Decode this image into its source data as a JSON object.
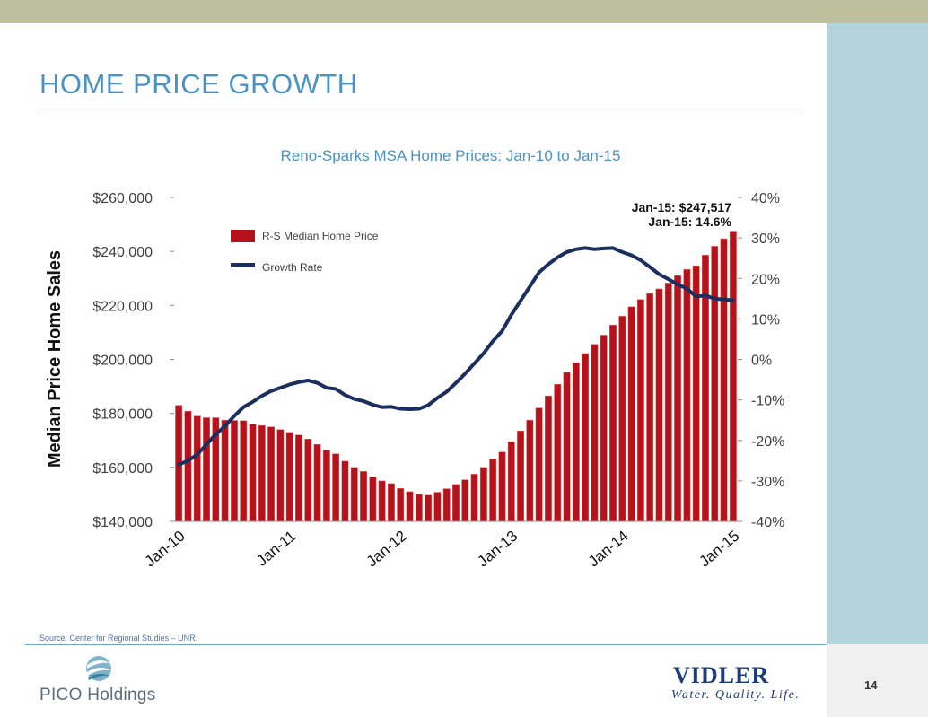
{
  "page": {
    "title": "HOME PRICE GROWTH",
    "source": "Source: Center for Regional Studies – UNR.",
    "page_number": "14"
  },
  "logos": {
    "left": {
      "text": "PICO Holdings"
    },
    "right": {
      "name": "VIDLER",
      "tagline": "Water. Quality. Life."
    }
  },
  "colors": {
    "bar": "#b5121b",
    "bar_highlight": "#d94a44",
    "line": "#1b2f5e",
    "title": "#4a92c2",
    "axis_text": "#404040"
  },
  "chart_data": {
    "type": "bar",
    "title": "Reno-Sparks MSA Home Prices: Jan-10 to Jan-15",
    "ylabel": "Median Price Home Sales",
    "xlabel": "",
    "ylim": [
      140000,
      260000
    ],
    "y2lim": [
      -40,
      40
    ],
    "yticks": [
      "$140,000",
      "$160,000",
      "$180,000",
      "$200,000",
      "$220,000",
      "$240,000",
      "$260,000"
    ],
    "y2ticks": [
      "-40%",
      "-30%",
      "-20%",
      "-10%",
      "0%",
      "10%",
      "20%",
      "30%",
      "40%"
    ],
    "xtick_labels": [
      "Jan-10",
      "Jan-11",
      "Jan-12",
      "Jan-13",
      "Jan-14",
      "Jan-15"
    ],
    "xtick_index": [
      0,
      12,
      24,
      36,
      48,
      60
    ],
    "legend": [
      {
        "name": "R-S Median Home Price",
        "kind": "bar"
      },
      {
        "name": "Growth Rate",
        "kind": "line"
      }
    ],
    "annotations": [
      "Jan-15: $247,517",
      "Jan-15: 14.6%"
    ],
    "series": [
      {
        "name": "R-S Median Home Price",
        "axis": "left",
        "kind": "bar",
        "values": [
          183000,
          180800,
          179000,
          178400,
          178400,
          177500,
          177400,
          177300,
          176000,
          175500,
          175000,
          174000,
          173000,
          172000,
          170500,
          168500,
          166500,
          165000,
          162300,
          160000,
          158500,
          156500,
          155000,
          154000,
          152200,
          151000,
          150000,
          149700,
          150800,
          152100,
          153700,
          155400,
          157500,
          160000,
          163000,
          165700,
          169500,
          173500,
          177500,
          182000,
          186500,
          190800,
          195200,
          198800,
          202200,
          205600,
          209000,
          212700,
          216000,
          219500,
          222200,
          224400,
          226100,
          228300,
          231000,
          233300,
          234700,
          238600,
          241900,
          244700,
          247517
        ]
      },
      {
        "name": "Growth Rate",
        "axis": "right",
        "kind": "line",
        "values": [
          -26.0,
          -25.0,
          -23.5,
          -21.0,
          -18.5,
          -16.5,
          -14.0,
          -11.8,
          -10.5,
          -9.0,
          -7.8,
          -7.0,
          -6.2,
          -5.6,
          -5.2,
          -5.8,
          -7.0,
          -7.3,
          -8.8,
          -9.8,
          -10.3,
          -11.2,
          -11.8,
          -11.7,
          -12.2,
          -12.3,
          -12.2,
          -11.3,
          -9.5,
          -8.0,
          -5.8,
          -3.5,
          -1.0,
          1.5,
          4.5,
          7.0,
          11.0,
          14.5,
          18.0,
          21.5,
          23.5,
          25.2,
          26.5,
          27.2,
          27.5,
          27.2,
          27.4,
          27.5,
          26.5,
          25.7,
          24.5,
          22.8,
          21.0,
          19.8,
          18.5,
          17.5,
          15.5,
          15.8,
          15.0,
          14.8,
          14.6
        ]
      }
    ]
  }
}
